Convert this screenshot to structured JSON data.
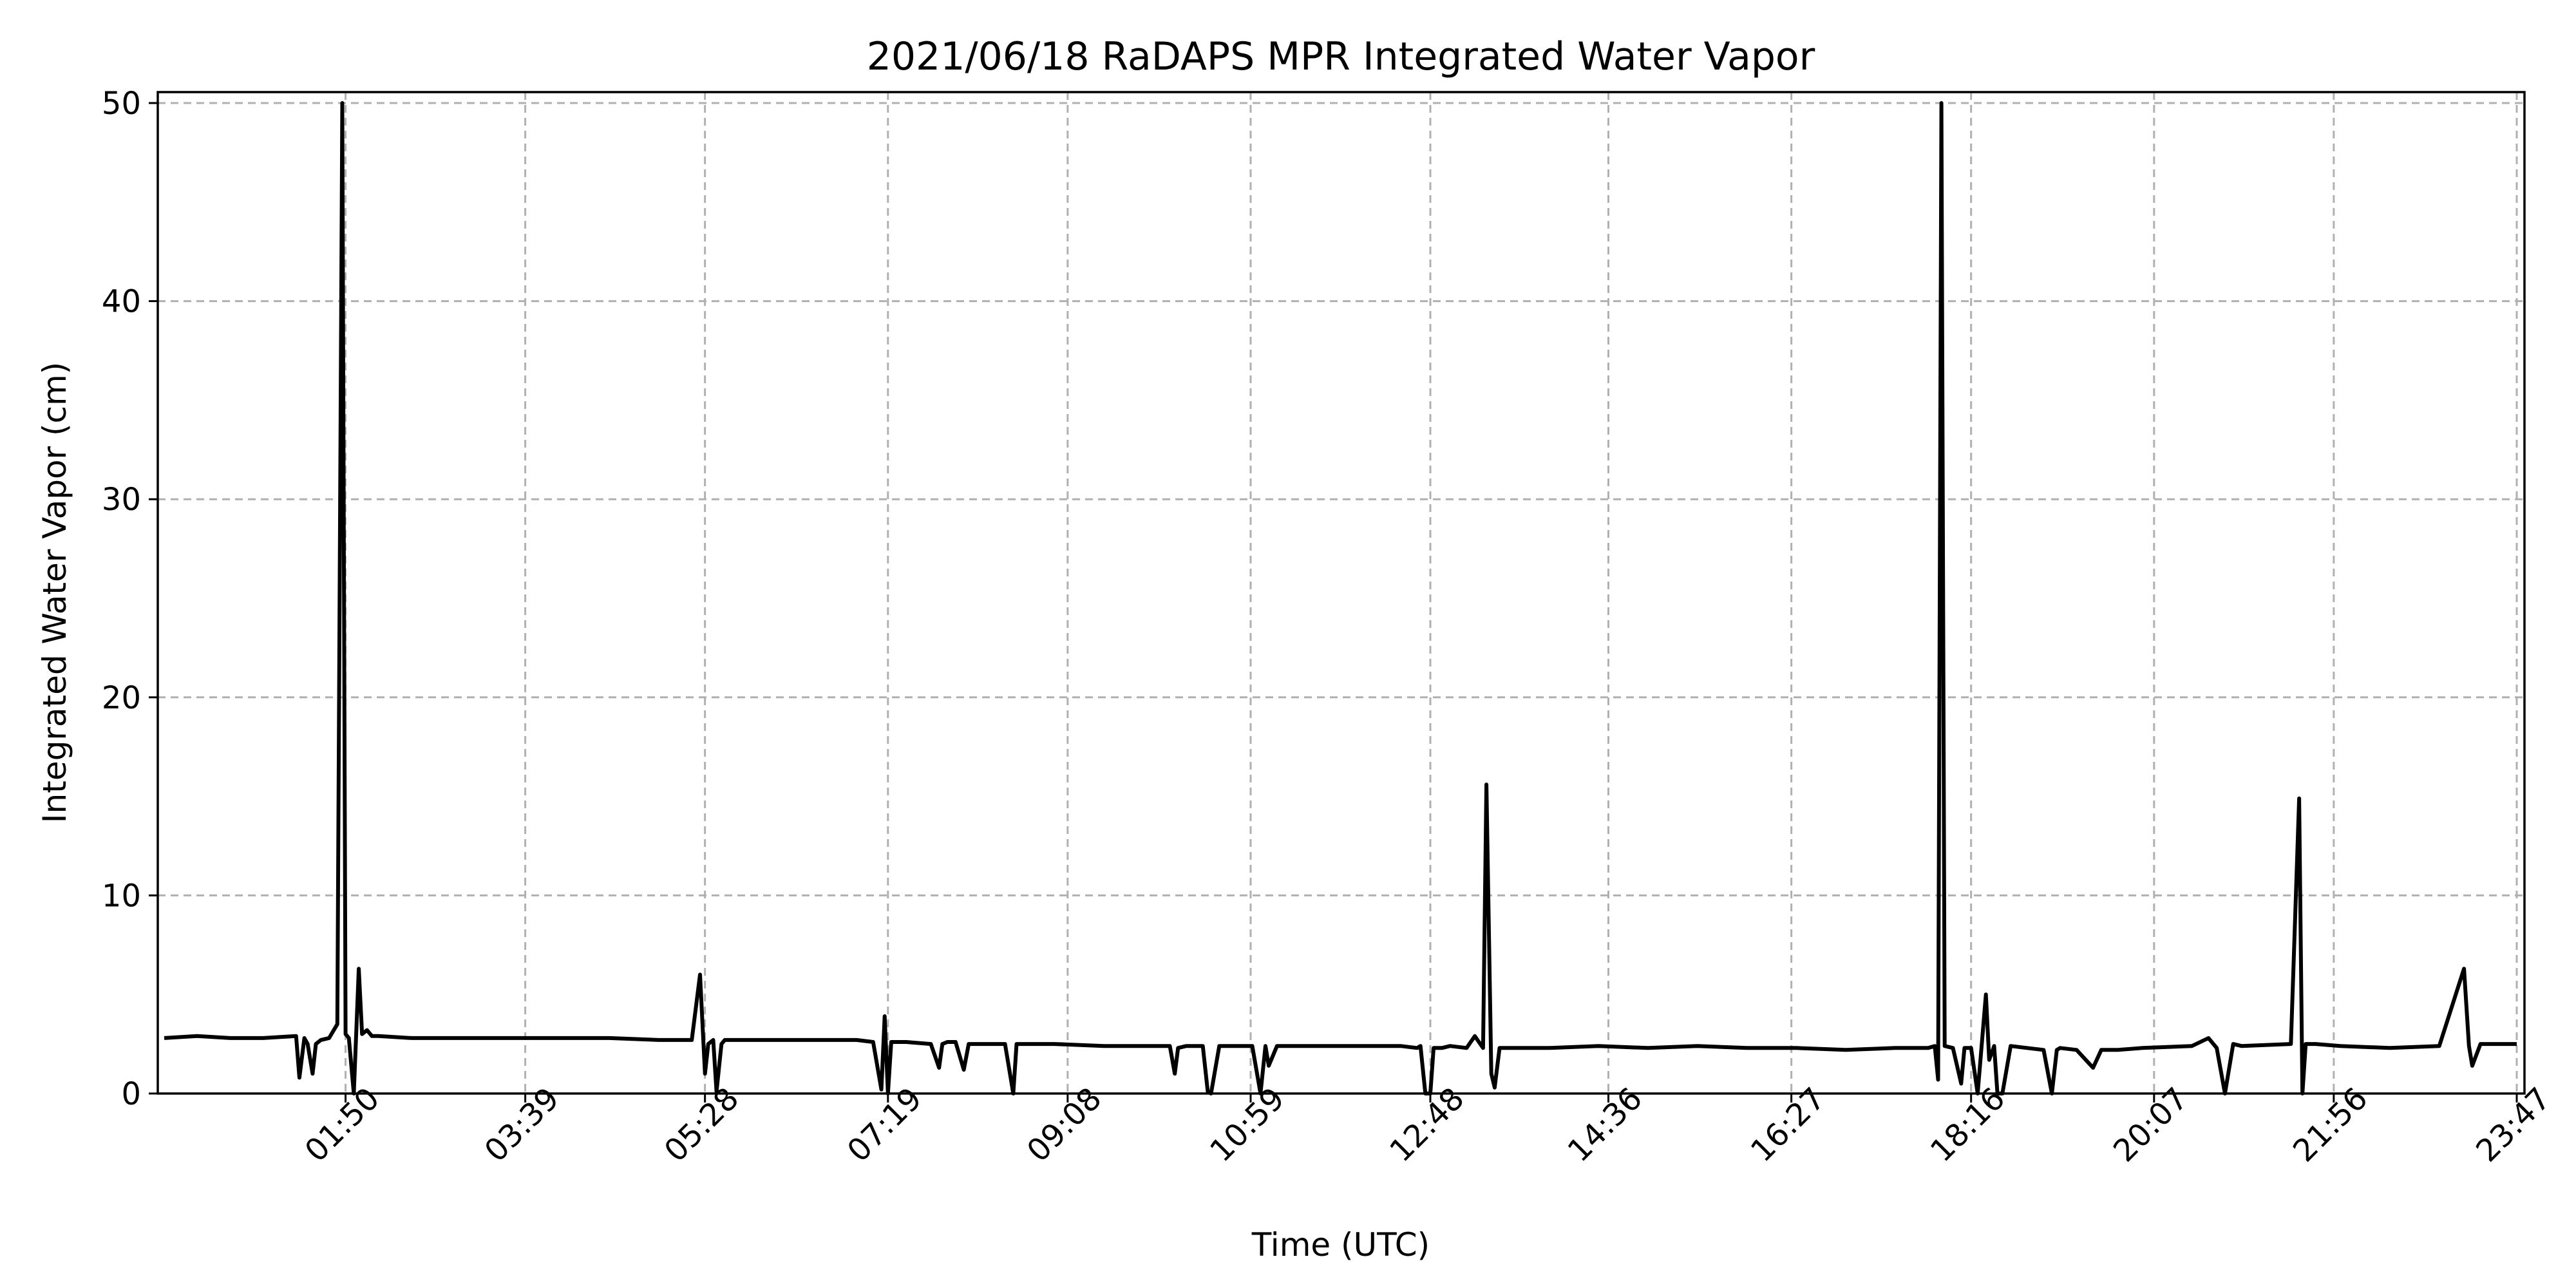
{
  "chart_data": {
    "type": "line",
    "title": "2021/06/18 RaDAPS MPR Integrated Water Vapor",
    "xlabel": "Time (UTC)",
    "ylabel": "Integrated Water Vapor (cm)",
    "xlim": [
      "00:00",
      "23:47"
    ],
    "ylim": [
      0,
      50
    ],
    "x_ticks": [
      "01:50",
      "03:39",
      "05:28",
      "07:19",
      "09:08",
      "10:59",
      "12:48",
      "14:36",
      "16:27",
      "18:16",
      "20:07",
      "21:56",
      "23:47"
    ],
    "y_ticks": [
      0,
      10,
      20,
      30,
      40,
      50
    ],
    "grid": true,
    "colors": {
      "line": "#000000",
      "grid": "#b0b0b0"
    },
    "series": [
      {
        "x": [
          "00:00",
          "00:20",
          "00:40",
          "01:00",
          "01:20",
          "01:22",
          "01:25",
          "01:27",
          "01:30",
          "01:32",
          "01:35",
          "01:40",
          "01:45",
          "01:48",
          "01:50",
          "01:52",
          "01:55",
          "01:58",
          "02:00",
          "02:03",
          "02:06",
          "02:10",
          "02:30",
          "03:00",
          "03:30",
          "04:00",
          "04:30",
          "05:00",
          "05:20",
          "05:25",
          "05:28",
          "05:30",
          "05:33",
          "05:35",
          "05:38",
          "05:40",
          "05:45",
          "06:00",
          "06:30",
          "07:00",
          "07:10",
          "07:15",
          "07:17",
          "07:19",
          "07:21",
          "07:25",
          "07:30",
          "07:45",
          "07:50",
          "07:52",
          "07:55",
          "08:00",
          "08:05",
          "08:08",
          "08:10",
          "08:15",
          "08:30",
          "08:35",
          "08:37",
          "08:40",
          "09:00",
          "09:30",
          "10:00",
          "10:10",
          "10:13",
          "10:15",
          "10:20",
          "10:30",
          "10:33",
          "10:35",
          "10:40",
          "10:45",
          "10:50",
          "11:00",
          "11:05",
          "11:08",
          "11:10",
          "11:15",
          "11:30",
          "12:00",
          "12:30",
          "12:40",
          "12:42",
          "12:45",
          "12:48",
          "12:50",
          "12:55",
          "13:00",
          "13:10",
          "13:15",
          "13:20",
          "13:22",
          "13:25",
          "13:27",
          "13:30",
          "13:35",
          "13:40",
          "14:00",
          "14:30",
          "15:00",
          "15:30",
          "16:00",
          "16:30",
          "17:00",
          "17:30",
          "17:50",
          "17:54",
          "17:56",
          "17:58",
          "18:00",
          "18:05",
          "18:10",
          "18:12",
          "18:16",
          "18:20",
          "18:25",
          "18:27",
          "18:30",
          "18:32",
          "18:35",
          "18:40",
          "18:50",
          "19:00",
          "19:05",
          "19:08",
          "19:10",
          "19:20",
          "19:30",
          "19:35",
          "19:40",
          "19:45",
          "20:00",
          "20:30",
          "20:40",
          "20:45",
          "20:50",
          "20:55",
          "21:00",
          "21:30",
          "21:35",
          "21:37",
          "21:39",
          "21:42",
          "21:45",
          "22:00",
          "22:30",
          "23:00",
          "23:15",
          "23:18",
          "23:20",
          "23:25",
          "23:30",
          "23:47"
        ],
        "y": [
          2.8,
          2.9,
          2.8,
          2.8,
          2.9,
          0.8,
          2.8,
          2.5,
          1.0,
          2.5,
          2.7,
          2.8,
          3.5,
          50.0,
          3.0,
          2.8,
          0.0,
          6.3,
          3.0,
          3.2,
          2.9,
          2.9,
          2.8,
          2.8,
          2.8,
          2.8,
          2.8,
          2.7,
          2.7,
          6.0,
          1.0,
          2.5,
          2.7,
          0.1,
          2.5,
          2.7,
          2.7,
          2.7,
          2.7,
          2.7,
          2.6,
          0.2,
          3.9,
          0.0,
          2.6,
          2.6,
          2.6,
          2.5,
          1.3,
          2.5,
          2.6,
          2.6,
          1.2,
          2.5,
          2.5,
          2.5,
          2.5,
          0.0,
          2.5,
          2.5,
          2.5,
          2.4,
          2.4,
          2.4,
          1.0,
          2.3,
          2.4,
          2.4,
          0.1,
          0.0,
          2.4,
          2.4,
          2.4,
          2.4,
          0.0,
          2.4,
          1.4,
          2.4,
          2.4,
          2.4,
          2.4,
          2.3,
          2.4,
          0.0,
          0.0,
          2.3,
          2.3,
          2.4,
          2.3,
          2.9,
          2.3,
          15.6,
          1.0,
          0.3,
          2.3,
          2.3,
          2.3,
          2.3,
          2.4,
          2.3,
          2.4,
          2.3,
          2.3,
          2.2,
          2.3,
          2.3,
          2.4,
          0.7,
          50.0,
          2.4,
          2.3,
          0.5,
          2.3,
          2.3,
          0.0,
          5.0,
          1.7,
          2.4,
          0.0,
          0.0,
          2.4,
          2.3,
          2.2,
          0.0,
          2.2,
          2.3,
          2.2,
          1.3,
          2.2,
          2.2,
          2.2,
          2.3,
          2.4,
          2.8,
          2.3,
          0.0,
          2.5,
          2.4,
          2.5,
          14.9,
          0.0,
          2.5,
          2.5,
          2.5,
          2.4,
          2.3,
          2.4,
          6.3,
          2.4,
          1.4,
          2.5,
          2.5,
          2.5
        ]
      }
    ]
  }
}
